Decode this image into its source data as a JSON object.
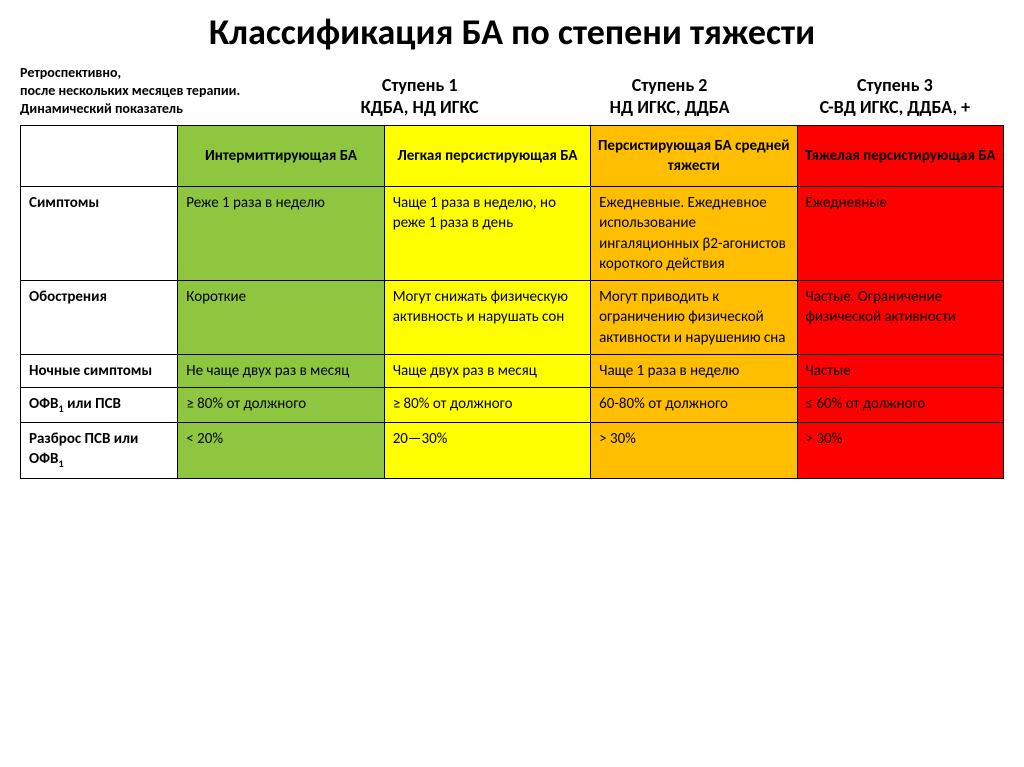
{
  "title": "Классификация БА по степени тяжести",
  "note": "Ретроспективно,\nпосле нескольких месяцев терапии.\nДинамический показатель",
  "steps": [
    {
      "title": "Ступень 1",
      "sub": "КДБА, НД ИГКС"
    },
    {
      "title": "Ступень 2",
      "sub": "НД ИГКС, ДДБА"
    },
    {
      "title": "Ступень 3",
      "sub": "С-ВД ИГКС, ДДБА, +"
    }
  ],
  "colors": {
    "green": "#8ec73f",
    "yellow": "#ffff00",
    "orange": "#ffbf00",
    "red": "#ff0000",
    "rowhead_bg": "#ffffff"
  },
  "columns": [
    "Интермиттирующая БА",
    "Легкая персистирующая БА",
    "Персистирующая БА средней тяжести",
    "Тяжелая персистирующая БА"
  ],
  "rows": [
    {
      "label": "Симптомы",
      "cells": [
        "Реже 1 раза в неделю",
        "Чаще 1 раза в неделю, но реже 1 раза в день",
        "Ежедневные. Ежедневное использование ингаляционных β2-агонистов короткого действия",
        "Ежедневные"
      ]
    },
    {
      "label": "Обострения",
      "cells": [
        "Короткие",
        "Могут снижать физическую активность и нарушать сон",
        "Могут приводить к ограничению физической активности и нарушению сна",
        "Частые. Ограничение физической активности"
      ]
    },
    {
      "label": "Ночные симптомы",
      "cells": [
        "Не чаще двух раз в месяц",
        "Чаще двух раз в месяц",
        "Чаще 1 раза в неделю",
        "Частые"
      ]
    },
    {
      "label_html": "ОФВ<sub>1</sub> или ПСВ",
      "label": "ОФВ1 или ПСВ",
      "cells": [
        "≥ 80% от должного",
        "≥ 80% от должного",
        "60-80% от должного",
        "≤ 60% от должного"
      ]
    },
    {
      "label_html": "Разброс ПСВ или ОФВ<sub>1</sub>",
      "label": "Разброс ПСВ или ОФВ1",
      "cells": [
        "< 20%",
        "20—30%",
        "> 30%",
        "> 30%"
      ]
    }
  ]
}
